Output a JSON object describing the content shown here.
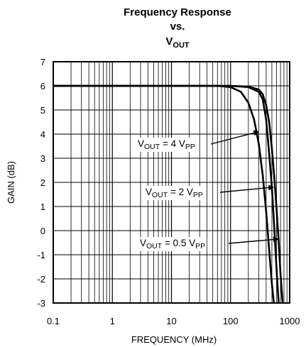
{
  "chart_data": {
    "type": "line",
    "title_lines": [
      "Frequency Response",
      "vs."
    ],
    "title_var": {
      "base": "V",
      "sub": "OUT"
    },
    "xlabel": "FREQUENCY (MHz)",
    "ylabel": "GAIN (dB)",
    "x_scale": "log",
    "xlim": [
      0.1,
      1000
    ],
    "ylim": [
      -3,
      7
    ],
    "grid": true,
    "x_ticks": [
      {
        "value": 0.1,
        "label": "0.1"
      },
      {
        "value": 1,
        "label": "1"
      },
      {
        "value": 10,
        "label": "10"
      },
      {
        "value": 100,
        "label": "100"
      },
      {
        "value": 1000,
        "label": "1000"
      }
    ],
    "y_ticks": [
      {
        "value": 7,
        "label": "7"
      },
      {
        "value": 6,
        "label": "6"
      },
      {
        "value": 5,
        "label": "5"
      },
      {
        "value": 4,
        "label": "4"
      },
      {
        "value": 3,
        "label": "3"
      },
      {
        "value": 2,
        "label": "2"
      },
      {
        "value": 1,
        "label": "1"
      },
      {
        "value": 0,
        "label": "0"
      },
      {
        "value": -1,
        "label": "-1"
      },
      {
        "value": -2,
        "label": "-2"
      },
      {
        "value": -3,
        "label": "-3"
      }
    ],
    "series": [
      {
        "id": "vout_4vpp",
        "points": [
          [
            0.1,
            6
          ],
          [
            10,
            6
          ],
          [
            60,
            6
          ],
          [
            100,
            5.95
          ],
          [
            150,
            5.75
          ],
          [
            200,
            5.3
          ],
          [
            250,
            4.6
          ],
          [
            300,
            3.6
          ],
          [
            350,
            2.3
          ],
          [
            400,
            0.8
          ],
          [
            450,
            -0.8
          ],
          [
            500,
            -2.2
          ],
          [
            540,
            -3
          ]
        ]
      },
      {
        "id": "vout_2vpp",
        "points": [
          [
            0.1,
            6
          ],
          [
            10,
            6
          ],
          [
            100,
            6
          ],
          [
            200,
            5.95
          ],
          [
            300,
            5.75
          ],
          [
            350,
            5.45
          ],
          [
            400,
            4.6
          ],
          [
            450,
            3.2
          ],
          [
            500,
            1.8
          ],
          [
            550,
            0.1
          ],
          [
            600,
            -1.6
          ],
          [
            650,
            -3
          ]
        ]
      },
      {
        "id": "vout_0_5vpp",
        "points": [
          [
            0.1,
            6
          ],
          [
            10,
            6
          ],
          [
            100,
            6
          ],
          [
            200,
            5.97
          ],
          [
            300,
            5.85
          ],
          [
            350,
            5.65
          ],
          [
            400,
            5.2
          ],
          [
            450,
            4.5
          ],
          [
            500,
            3.4
          ],
          [
            550,
            2.2
          ],
          [
            600,
            0.9
          ],
          [
            650,
            -0.4
          ],
          [
            700,
            -1.8
          ],
          [
            760,
            -3
          ]
        ]
      }
    ],
    "annotations": [
      {
        "base": "V",
        "sub1": "OUT",
        "text": " = 4 V",
        "sub2": "PP",
        "arrow_to": [
          300,
          4.1
        ]
      },
      {
        "base": "V",
        "sub1": "OUT",
        "text": " = 2 V",
        "sub2": "PP",
        "arrow_to": [
          530,
          1.8
        ]
      },
      {
        "base": "V",
        "sub1": "OUT",
        "text": " = 0.5 V",
        "sub2": "PP",
        "arrow_to": [
          640,
          -0.35
        ]
      }
    ]
  }
}
